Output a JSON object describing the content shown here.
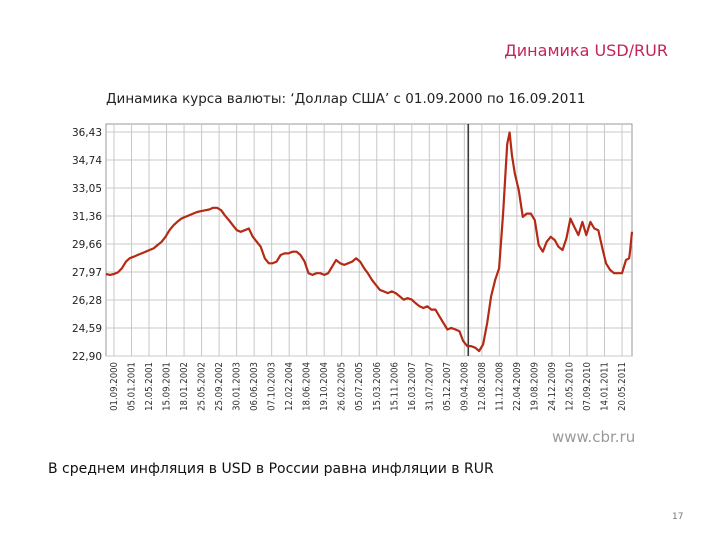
{
  "slide": {
    "title": "Динамика USD/RUR",
    "note": "В среднем инфляция в USD в России равна инфляции в RUR",
    "page_number": "17"
  },
  "colors": {
    "title": "#c4245c",
    "line": "#b42a14",
    "grid": "#c8c8c8",
    "marker": "#3a3a3a"
  },
  "chart_data": {
    "type": "line",
    "title": "Динамика курса валюты: ‘Доллар США’ с 01.09.2000 по 16.09.2011",
    "source": "www.cbr.ru",
    "xlabel": "",
    "ylabel": "",
    "ylim": [
      22.9,
      36.43
    ],
    "y_ticks": [
      "36,43",
      "34,74",
      "33,05",
      "31,36",
      "29,66",
      "27,97",
      "26,28",
      "24,59",
      "22,90"
    ],
    "x_ticks": [
      "01.09.2000",
      "05.01.2001",
      "12.05.2001",
      "15.09.2001",
      "18.01.2002",
      "25.05.2002",
      "25.09.2002",
      "30.01.2003",
      "06.06.2003",
      "07.10.2003",
      "12.02.2004",
      "18.06.2004",
      "19.10.2004",
      "26.02.2005",
      "05.07.2005",
      "15.03.2006",
      "15.11.2006",
      "16.03.2007",
      "31.07.2007",
      "05.12.2007",
      "09.04.2008",
      "12.08.2008",
      "11.12.2008",
      "22.04.2009",
      "19.08.2009",
      "24.12.2009",
      "12.05.2010",
      "07.09.2010",
      "14.01.2011",
      "20.05.2011"
    ],
    "grid": true,
    "legend": "none",
    "marker_x": "09.04.2008",
    "series": [
      {
        "points": [
          [
            "2000-09-01",
            27.85
          ],
          [
            "2000-10-01",
            27.8
          ],
          [
            "2000-11-01",
            27.85
          ],
          [
            "2000-12-01",
            27.95
          ],
          [
            "2001-01-01",
            28.2
          ],
          [
            "2001-02-01",
            28.6
          ],
          [
            "2001-03-01",
            28.8
          ],
          [
            "2001-04-01",
            28.9
          ],
          [
            "2001-05-01",
            29.0
          ],
          [
            "2001-06-01",
            29.1
          ],
          [
            "2001-07-01",
            29.2
          ],
          [
            "2001-08-01",
            29.3
          ],
          [
            "2001-09-01",
            29.4
          ],
          [
            "2001-10-01",
            29.6
          ],
          [
            "2001-11-01",
            29.8
          ],
          [
            "2001-12-01",
            30.1
          ],
          [
            "2002-01-01",
            30.5
          ],
          [
            "2002-02-01",
            30.8
          ],
          [
            "2002-03-01",
            31.0
          ],
          [
            "2002-04-01",
            31.2
          ],
          [
            "2002-05-01",
            31.3
          ],
          [
            "2002-06-01",
            31.4
          ],
          [
            "2002-07-01",
            31.5
          ],
          [
            "2002-08-01",
            31.6
          ],
          [
            "2002-09-01",
            31.65
          ],
          [
            "2002-10-01",
            31.7
          ],
          [
            "2002-11-01",
            31.75
          ],
          [
            "2002-12-01",
            31.85
          ],
          [
            "2003-01-01",
            31.85
          ],
          [
            "2003-02-01",
            31.7
          ],
          [
            "2003-03-01",
            31.4
          ],
          [
            "2003-04-01",
            31.1
          ],
          [
            "2003-05-01",
            30.8
          ],
          [
            "2003-06-01",
            30.5
          ],
          [
            "2003-07-01",
            30.4
          ],
          [
            "2003-08-01",
            30.5
          ],
          [
            "2003-09-01",
            30.6
          ],
          [
            "2003-10-01",
            30.1
          ],
          [
            "2003-11-01",
            29.8
          ],
          [
            "2003-12-01",
            29.5
          ],
          [
            "2004-01-01",
            28.8
          ],
          [
            "2004-02-01",
            28.5
          ],
          [
            "2004-03-01",
            28.5
          ],
          [
            "2004-04-01",
            28.6
          ],
          [
            "2004-05-01",
            29.0
          ],
          [
            "2004-06-01",
            29.1
          ],
          [
            "2004-07-01",
            29.1
          ],
          [
            "2004-08-01",
            29.2
          ],
          [
            "2004-09-01",
            29.2
          ],
          [
            "2004-10-01",
            29.0
          ],
          [
            "2004-11-01",
            28.6
          ],
          [
            "2004-12-01",
            27.9
          ],
          [
            "2005-01-01",
            27.8
          ],
          [
            "2005-02-01",
            27.9
          ],
          [
            "2005-03-01",
            27.9
          ],
          [
            "2005-04-01",
            27.8
          ],
          [
            "2005-05-01",
            27.9
          ],
          [
            "2005-06-01",
            28.3
          ],
          [
            "2005-07-01",
            28.7
          ],
          [
            "2005-08-01",
            28.5
          ],
          [
            "2005-09-01",
            28.4
          ],
          [
            "2005-10-01",
            28.5
          ],
          [
            "2005-11-01",
            28.6
          ],
          [
            "2005-12-01",
            28.8
          ],
          [
            "2006-01-01",
            28.6
          ],
          [
            "2006-02-01",
            28.2
          ],
          [
            "2006-03-01",
            27.9
          ],
          [
            "2006-04-01",
            27.5
          ],
          [
            "2006-05-01",
            27.2
          ],
          [
            "2006-06-01",
            26.9
          ],
          [
            "2006-07-01",
            26.8
          ],
          [
            "2006-08-01",
            26.7
          ],
          [
            "2006-09-01",
            26.8
          ],
          [
            "2006-10-01",
            26.7
          ],
          [
            "2006-11-01",
            26.5
          ],
          [
            "2006-12-01",
            26.3
          ],
          [
            "2007-01-01",
            26.4
          ],
          [
            "2007-02-01",
            26.3
          ],
          [
            "2007-03-01",
            26.1
          ],
          [
            "2007-04-01",
            25.9
          ],
          [
            "2007-05-01",
            25.8
          ],
          [
            "2007-06-01",
            25.9
          ],
          [
            "2007-07-01",
            25.7
          ],
          [
            "2007-08-01",
            25.7
          ],
          [
            "2007-09-01",
            25.3
          ],
          [
            "2007-10-01",
            24.9
          ],
          [
            "2007-11-01",
            24.5
          ],
          [
            "2007-12-01",
            24.6
          ],
          [
            "2008-01-01",
            24.5
          ],
          [
            "2008-02-01",
            24.4
          ],
          [
            "2008-03-01",
            23.8
          ],
          [
            "2008-04-01",
            23.5
          ],
          [
            "2008-05-01",
            23.5
          ],
          [
            "2008-06-01",
            23.4
          ],
          [
            "2008-07-01",
            23.2
          ],
          [
            "2008-08-01",
            23.6
          ],
          [
            "2008-09-01",
            24.9
          ],
          [
            "2008-10-01",
            26.5
          ],
          [
            "2008-11-01",
            27.5
          ],
          [
            "2008-12-01",
            28.2
          ],
          [
            "2009-01-01",
            31.5
          ],
          [
            "2009-02-01",
            35.7
          ],
          [
            "2009-02-20",
            36.4
          ],
          [
            "2009-03-10",
            35.0
          ],
          [
            "2009-04-01",
            33.9
          ],
          [
            "2009-05-01",
            32.9
          ],
          [
            "2009-06-01",
            31.3
          ],
          [
            "2009-07-01",
            31.5
          ],
          [
            "2009-08-01",
            31.5
          ],
          [
            "2009-09-01",
            31.1
          ],
          [
            "2009-10-01",
            29.6
          ],
          [
            "2009-11-01",
            29.2
          ],
          [
            "2009-12-01",
            29.8
          ],
          [
            "2010-01-01",
            30.1
          ],
          [
            "2010-02-01",
            29.9
          ],
          [
            "2010-03-01",
            29.5
          ],
          [
            "2010-04-01",
            29.3
          ],
          [
            "2010-05-01",
            30.0
          ],
          [
            "2010-06-01",
            31.2
          ],
          [
            "2010-07-01",
            30.7
          ],
          [
            "2010-08-01",
            30.2
          ],
          [
            "2010-09-01",
            31.0
          ],
          [
            "2010-10-01",
            30.2
          ],
          [
            "2010-11-01",
            31.0
          ],
          [
            "2010-12-01",
            30.6
          ],
          [
            "2011-01-01",
            30.5
          ],
          [
            "2011-02-01",
            29.4
          ],
          [
            "2011-03-01",
            28.5
          ],
          [
            "2011-04-01",
            28.1
          ],
          [
            "2011-05-01",
            27.9
          ],
          [
            "2011-06-01",
            27.9
          ],
          [
            "2011-07-01",
            27.9
          ],
          [
            "2011-08-01",
            28.7
          ],
          [
            "2011-08-25",
            28.8
          ],
          [
            "2011-09-01",
            29.2
          ],
          [
            "2011-09-16",
            30.4
          ]
        ]
      }
    ]
  }
}
